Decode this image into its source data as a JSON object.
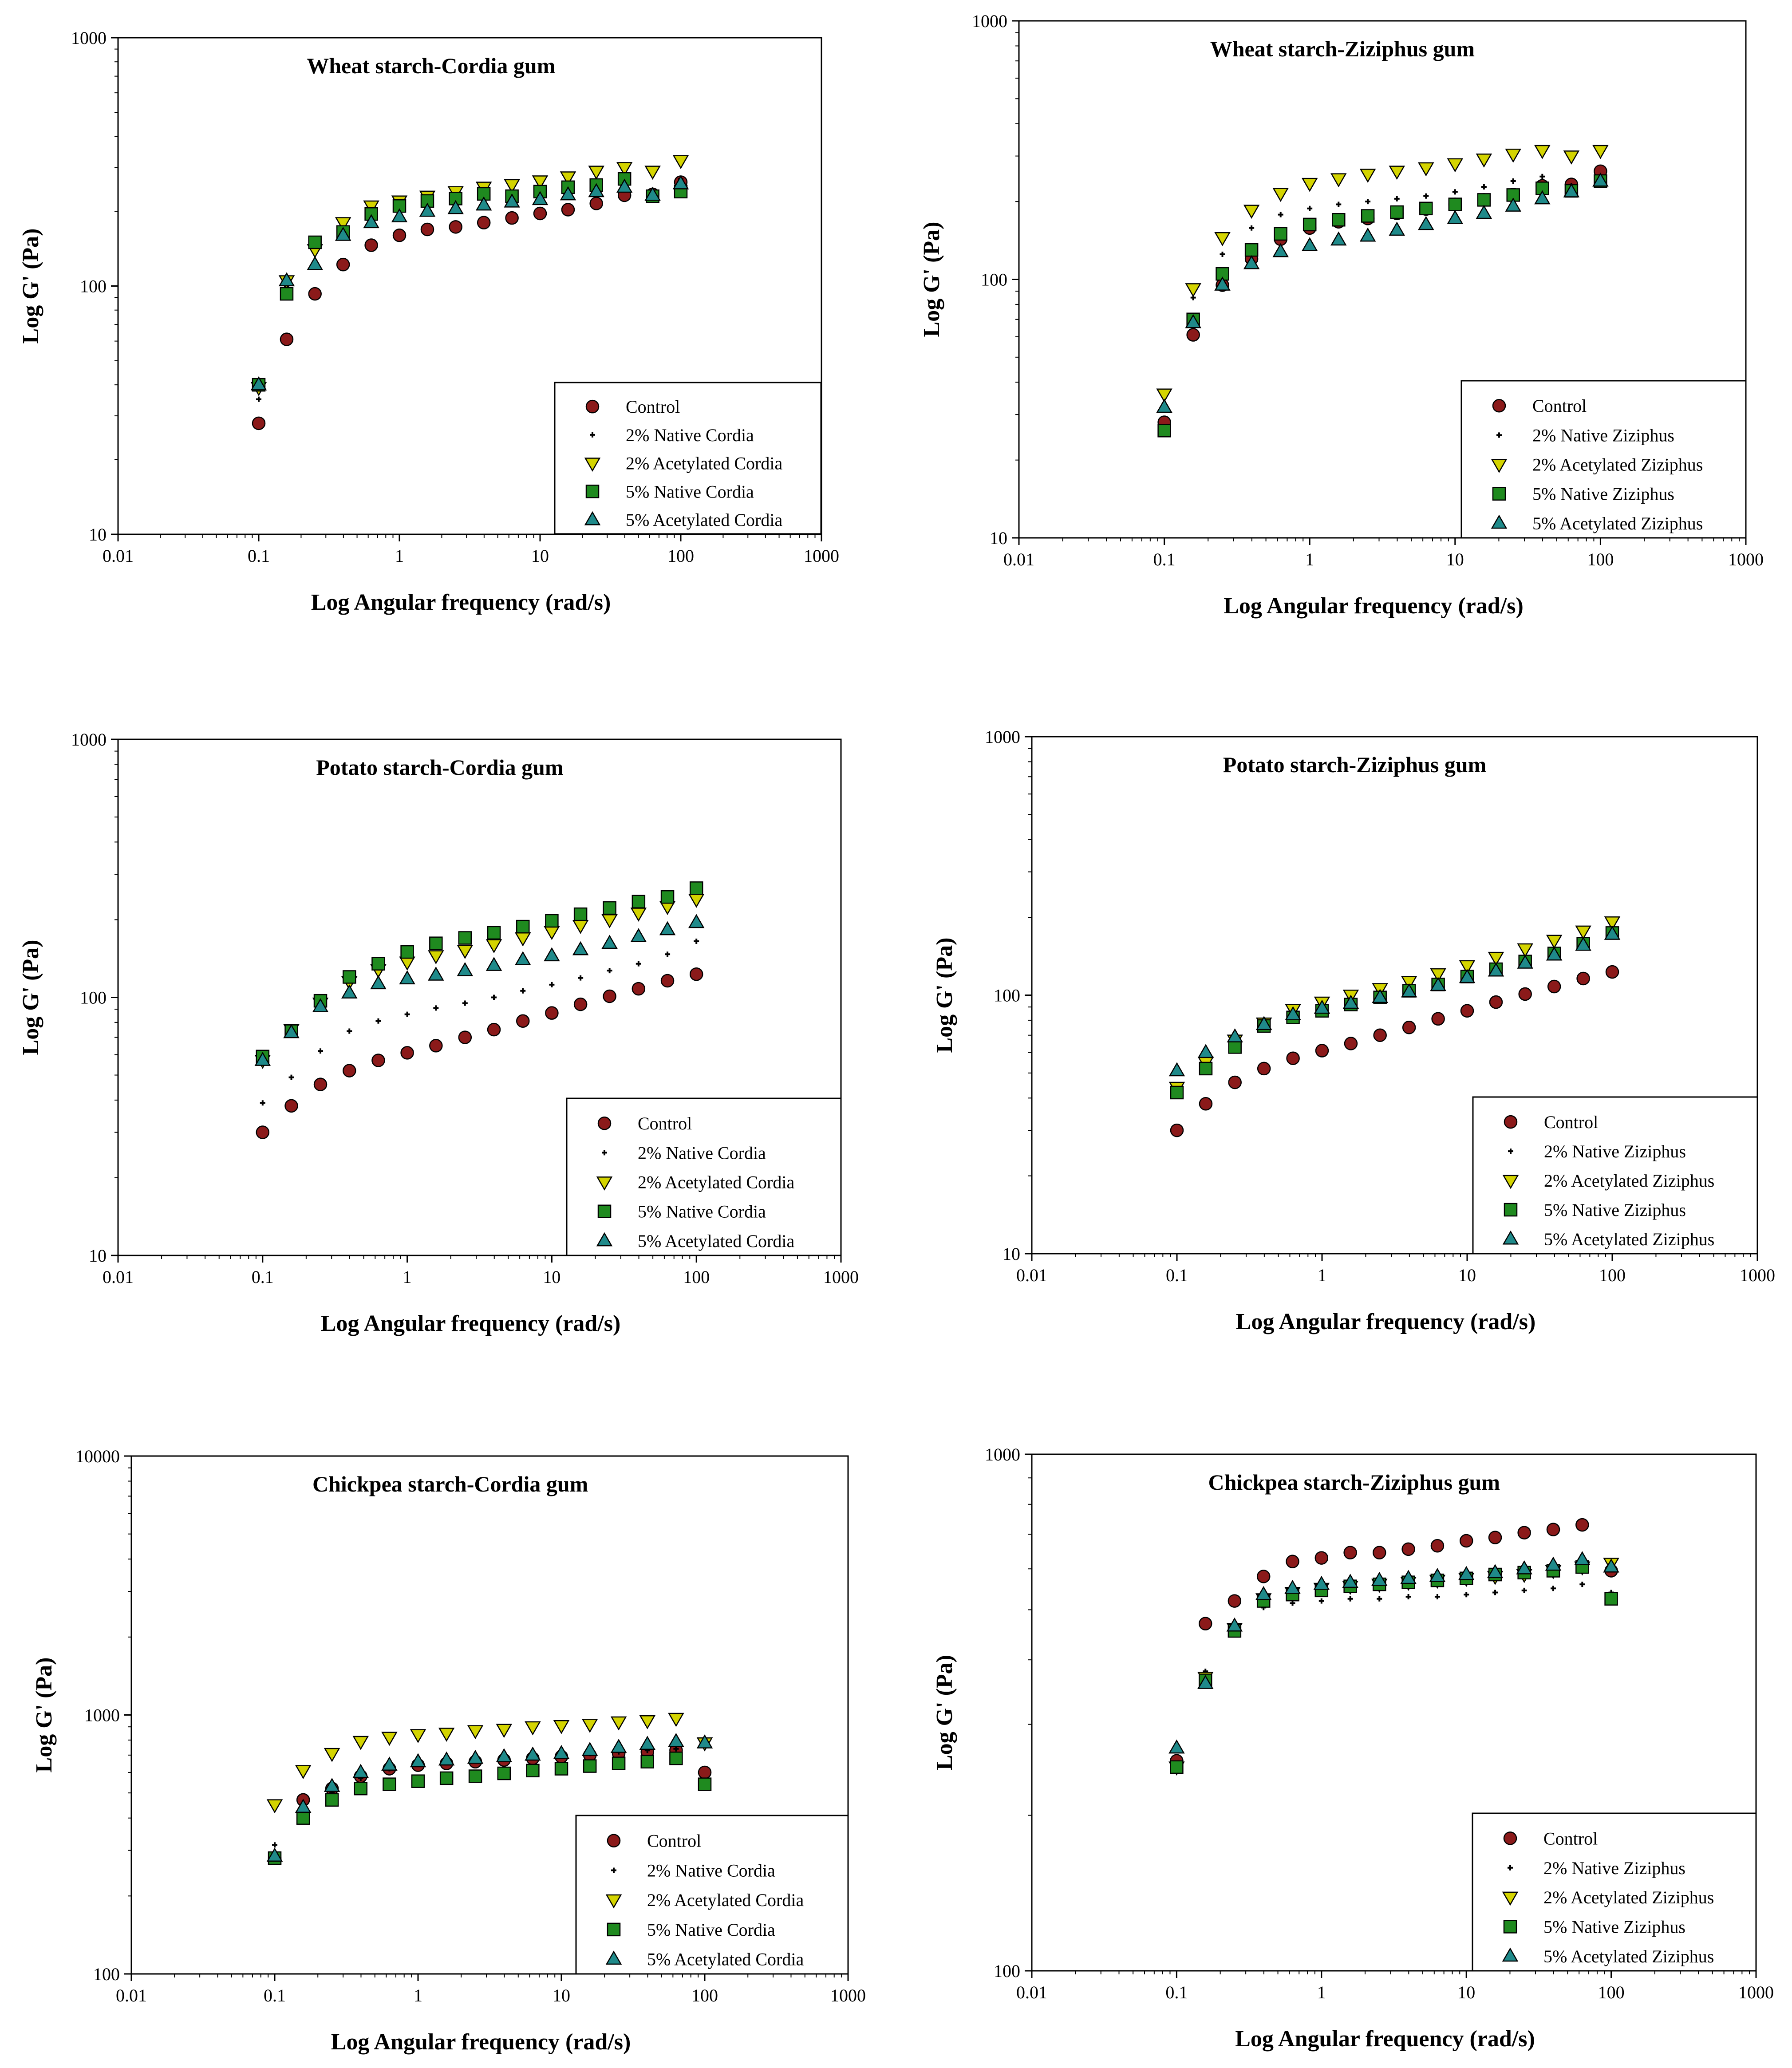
{
  "colors": {
    "control": "#8b1a1a",
    "native2": "#000000",
    "acetylated2": "#d4d400",
    "native5": "#1f8a1f",
    "acetylated5": "#1f8a8a"
  },
  "chart_data": [
    {
      "type": "scatter",
      "title": "Wheat starch-Cordia gum",
      "xlabel": "Log Angular frequency (rad/s)",
      "ylabel": "Log G' (Pa)",
      "xscale": "log",
      "yscale": "log",
      "xlim": [
        0.01,
        1000
      ],
      "ylim": [
        10,
        1000
      ],
      "xticks": [
        "0.01",
        "0.1",
        "1",
        "10",
        "100",
        "1000"
      ],
      "yticks": [
        "10",
        "100",
        "1000"
      ],
      "legend_position": "bottom-right",
      "x": [
        0.1,
        0.158,
        0.251,
        0.398,
        0.631,
        1,
        1.58,
        2.51,
        3.98,
        6.31,
        10,
        15.8,
        25.1,
        39.8,
        63.1,
        100
      ],
      "series": [
        {
          "name": "Control",
          "marker": "circle",
          "color": "control",
          "values": [
            28,
            61,
            93,
            122,
            146,
            160,
            169,
            173,
            180,
            188,
            196,
            203,
            215,
            232,
            234,
            262
          ]
        },
        {
          "name": "2% Native Cordia",
          "marker": "plus",
          "color": "native2",
          "values": [
            35,
            100,
            140,
            165,
            190,
            205,
            210,
            215,
            220,
            225,
            230,
            240,
            250,
            260,
            240,
            270
          ]
        },
        {
          "name": "2% Acetylated Cordia",
          "marker": "triangle-down",
          "color": "acetylated2",
          "values": [
            39,
            105,
            140,
            180,
            210,
            220,
            230,
            240,
            250,
            256,
            265,
            275,
            290,
            300,
            290,
            320
          ]
        },
        {
          "name": "5% Native Cordia",
          "marker": "square",
          "color": "native5",
          "values": [
            40,
            93,
            150,
            165,
            195,
            210,
            220,
            225,
            235,
            230,
            240,
            250,
            255,
            270,
            230,
            240
          ]
        },
        {
          "name": "5% Acetylated Cordia",
          "marker": "triangle-up",
          "color": "acetylated5",
          "values": [
            40,
            105,
            122,
            160,
            180,
            190,
            200,
            205,
            212,
            218,
            223,
            233,
            240,
            250,
            232,
            258
          ]
        }
      ]
    },
    {
      "type": "scatter",
      "title": "Wheat starch-Ziziphus gum",
      "xlabel": "Log Angular frequency (rad/s)",
      "ylabel": "Log G' (Pa)",
      "xscale": "log",
      "yscale": "log",
      "xlim": [
        0.01,
        1000
      ],
      "ylim": [
        10,
        1000
      ],
      "xticks": [
        "0.01",
        "0.1",
        "1",
        "10",
        "100",
        "1000"
      ],
      "yticks": [
        "10",
        "100",
        "1000"
      ],
      "legend_position": "bottom-right",
      "x": [
        0.1,
        0.158,
        0.251,
        0.398,
        0.631,
        1,
        1.58,
        2.51,
        3.98,
        6.31,
        10,
        15.8,
        25.1,
        39.8,
        63.1,
        100
      ],
      "series": [
        {
          "name": "Control",
          "marker": "circle",
          "color": "control",
          "values": [
            28,
            61,
            95,
            120,
            143,
            158,
            167,
            172,
            180,
            187,
            195,
            203,
            213,
            230,
            233,
            262
          ]
        },
        {
          "name": "2% Native Ziziphus",
          "marker": "plus",
          "color": "native2",
          "values": [
            33,
            85,
            125,
            158,
            178,
            188,
            195,
            200,
            205,
            210,
            218,
            228,
            240,
            250,
            230,
            245
          ]
        },
        {
          "name": "2% Acetylated Ziziphus",
          "marker": "triangle-down",
          "color": "acetylated2",
          "values": [
            36,
            92,
            145,
            185,
            215,
            235,
            245,
            255,
            262,
            270,
            280,
            292,
            305,
            315,
            300,
            315
          ]
        },
        {
          "name": "5% Native Ziziphus",
          "marker": "square",
          "color": "native5",
          "values": [
            26,
            70,
            105,
            130,
            150,
            163,
            170,
            176,
            182,
            188,
            195,
            203,
            212,
            225,
            220,
            240
          ]
        },
        {
          "name": "5% Acetylated Ziziphus",
          "marker": "triangle-up",
          "color": "acetylated5",
          "values": [
            32,
            68,
            95,
            115,
            128,
            135,
            142,
            147,
            155,
            163,
            172,
            180,
            192,
            205,
            218,
            240
          ]
        }
      ]
    },
    {
      "type": "scatter",
      "title": "Potato starch-Cordia gum",
      "xlabel": "Log Angular frequency (rad/s)",
      "ylabel": "Log G' (Pa)",
      "xscale": "log",
      "yscale": "log",
      "xlim": [
        0.01,
        1000
      ],
      "ylim": [
        10,
        1000
      ],
      "xticks": [
        "0.01",
        "0.1",
        "1",
        "10",
        "100",
        "1000"
      ],
      "yticks": [
        "10",
        "100",
        "1000"
      ],
      "legend_position": "bottom-right",
      "x": [
        0.1,
        0.158,
        0.251,
        0.398,
        0.631,
        1,
        1.58,
        2.51,
        3.98,
        6.31,
        10,
        15.8,
        25.1,
        39.8,
        63.1,
        100
      ],
      "series": [
        {
          "name": "Control",
          "marker": "circle",
          "color": "control",
          "values": [
            30,
            38,
            46,
            52,
            57,
            61,
            65,
            70,
            75,
            81,
            87,
            94,
            101,
            108,
            116,
            123
          ]
        },
        {
          "name": "2% Native Cordia",
          "marker": "plus",
          "color": "native2",
          "values": [
            39,
            49,
            62,
            74,
            81,
            86,
            91,
            95,
            100,
            106,
            112,
            119,
            127,
            135,
            147,
            165
          ]
        },
        {
          "name": "2% Acetylated Cordia",
          "marker": "triangle-down",
          "color": "acetylated2",
          "values": [
            57,
            75,
            95,
            115,
            128,
            137,
            145,
            152,
            160,
            170,
            180,
            190,
            200,
            212,
            225,
            240
          ]
        },
        {
          "name": "5% Native Cordia",
          "marker": "square",
          "color": "native5",
          "values": [
            59,
            74,
            97,
            120,
            135,
            150,
            162,
            170,
            178,
            188,
            198,
            210,
            222,
            235,
            245,
            265
          ]
        },
        {
          "name": "5% Acetylated Cordia",
          "marker": "triangle-up",
          "color": "acetylated5",
          "values": [
            57,
            73,
            92,
            104,
            113,
            118,
            122,
            127,
            133,
            140,
            145,
            153,
            162,
            172,
            183,
            195
          ]
        }
      ]
    },
    {
      "type": "scatter",
      "title": "Potato starch-Ziziphus gum",
      "xlabel": "Log Angular frequency (rad/s)",
      "ylabel": "Log G' (Pa)",
      "xscale": "log",
      "yscale": "log",
      "xlim": [
        0.01,
        1000
      ],
      "ylim": [
        10,
        1000
      ],
      "xticks": [
        "0.01",
        "0.1",
        "1",
        "10",
        "100",
        "1000"
      ],
      "yticks": [
        "10",
        "100",
        "1000"
      ],
      "legend_position": "bottom-right",
      "x": [
        0.1,
        0.158,
        0.251,
        0.398,
        0.631,
        1,
        1.58,
        2.51,
        3.98,
        6.31,
        10,
        15.8,
        25.1,
        39.8,
        63.1,
        100
      ],
      "series": [
        {
          "name": "Control",
          "marker": "circle",
          "color": "control",
          "values": [
            30,
            38,
            46,
            52,
            57,
            61,
            65,
            70,
            75,
            81,
            87,
            94,
            101,
            108,
            116,
            123
          ]
        },
        {
          "name": "2% Native Ziziphus",
          "marker": "plus",
          "color": "native2",
          "values": [
            43,
            55,
            66,
            75,
            81,
            86,
            91,
            96,
            102,
            110,
            118,
            127,
            137,
            147,
            160,
            172
          ]
        },
        {
          "name": "2% Acetylated Ziziphus",
          "marker": "triangle-down",
          "color": "acetylated2",
          "values": [
            44,
            55,
            67,
            78,
            88,
            94,
            100,
            106,
            113,
            121,
            130,
            140,
            151,
            163,
            177,
            192
          ]
        },
        {
          "name": "5% Native Ziziphus",
          "marker": "square",
          "color": "native5",
          "values": [
            42,
            52,
            63,
            76,
            82,
            87,
            92,
            98,
            104,
            110,
            118,
            126,
            135,
            145,
            158,
            174
          ]
        },
        {
          "name": "5% Acetylated Ziziphus",
          "marker": "triangle-up",
          "color": "acetylated5",
          "values": [
            51,
            60,
            69,
            77,
            84,
            89,
            93,
            98,
            103,
            109,
            117,
            124,
            133,
            143,
            156,
            172
          ]
        }
      ]
    },
    {
      "type": "scatter",
      "title": "Chickpea starch-Cordia gum",
      "xlabel": "Log Angular frequency (rad/s)",
      "ylabel": "Log G' (Pa)",
      "xscale": "log",
      "yscale": "log",
      "xlim": [
        0.01,
        1000
      ],
      "ylim": [
        100,
        10000
      ],
      "xticks": [
        "0.01",
        "0.1",
        "1",
        "10",
        "100",
        "1000"
      ],
      "yticks": [
        "100",
        "1000",
        "10000"
      ],
      "legend_position": "bottom-right",
      "x": [
        0.1,
        0.158,
        0.251,
        0.398,
        0.631,
        1,
        1.58,
        2.51,
        3.98,
        6.31,
        10,
        15.8,
        25.1,
        39.8,
        63.1,
        100
      ],
      "series": [
        {
          "name": "Control",
          "marker": "circle",
          "color": "control",
          "values": [
            280,
            470,
            520,
            580,
            620,
            640,
            650,
            660,
            670,
            680,
            690,
            700,
            710,
            720,
            730,
            600
          ]
        },
        {
          "name": "2% Native Cordia",
          "marker": "plus",
          "color": "native2",
          "values": [
            315,
            420,
            500,
            570,
            620,
            650,
            660,
            670,
            680,
            690,
            700,
            710,
            720,
            730,
            740,
            760
          ]
        },
        {
          "name": "2% Acetylated Cordia",
          "marker": "triangle-down",
          "color": "acetylated2",
          "values": [
            450,
            610,
            710,
            790,
            820,
            840,
            850,
            870,
            880,
            900,
            910,
            920,
            940,
            950,
            970,
            780
          ]
        },
        {
          "name": "5% Native Cordia",
          "marker": "square",
          "color": "native5",
          "values": [
            280,
            400,
            470,
            520,
            540,
            555,
            570,
            580,
            595,
            610,
            620,
            635,
            650,
            660,
            680,
            540
          ]
        },
        {
          "name": "5% Acetylated Cordia",
          "marker": "triangle-up",
          "color": "acetylated5",
          "values": [
            285,
            440,
            530,
            600,
            640,
            660,
            670,
            680,
            690,
            700,
            710,
            730,
            750,
            770,
            790,
            780
          ]
        }
      ]
    },
    {
      "type": "scatter",
      "title": "Chickpea starch-Ziziphus gum",
      "xlabel": "Log Angular frequency (rad/s)",
      "ylabel": "Log G' (Pa)",
      "xscale": "log",
      "yscale": "log",
      "xlim": [
        0.01,
        1000
      ],
      "ylim": [
        100,
        1000
      ],
      "xticks": [
        "0.01",
        "0.1",
        "1",
        "10",
        "100",
        "1000"
      ],
      "yticks": [
        "100",
        "1000"
      ],
      "legend_position": "bottom-right",
      "x": [
        0.1,
        0.158,
        0.251,
        0.398,
        0.631,
        1,
        1.58,
        2.51,
        3.98,
        6.31,
        10,
        15.8,
        25.1,
        39.8,
        63.1,
        100
      ],
      "series": [
        {
          "name": "Control",
          "marker": "circle",
          "color": "control",
          "values": [
            255,
            470,
            520,
            580,
            620,
            630,
            645,
            645,
            655,
            665,
            680,
            690,
            705,
            715,
            730,
            595
          ]
        },
        {
          "name": "2% Native Ziziphus",
          "marker": "plus",
          "color": "native2",
          "values": [
            250,
            380,
            450,
            505,
            515,
            520,
            525,
            525,
            530,
            530,
            535,
            540,
            545,
            550,
            560,
            540
          ]
        },
        {
          "name": "2% Acetylated Ziziphus",
          "marker": "triangle-down",
          "color": "acetylated2",
          "values": [
            248,
            370,
            460,
            525,
            540,
            550,
            555,
            560,
            565,
            570,
            575,
            580,
            585,
            595,
            605,
            615
          ]
        },
        {
          "name": "5% Native Ziziphus",
          "marker": "square",
          "color": "native5",
          "values": [
            248,
            365,
            455,
            520,
            535,
            545,
            555,
            560,
            565,
            570,
            575,
            585,
            590,
            595,
            605,
            525
          ]
        },
        {
          "name": "5% Acetylated Ziziphus",
          "marker": "triangle-up",
          "color": "acetylated5",
          "values": [
            270,
            360,
            465,
            535,
            550,
            560,
            565,
            570,
            575,
            580,
            585,
            590,
            600,
            610,
            625,
            605
          ]
        }
      ]
    }
  ]
}
